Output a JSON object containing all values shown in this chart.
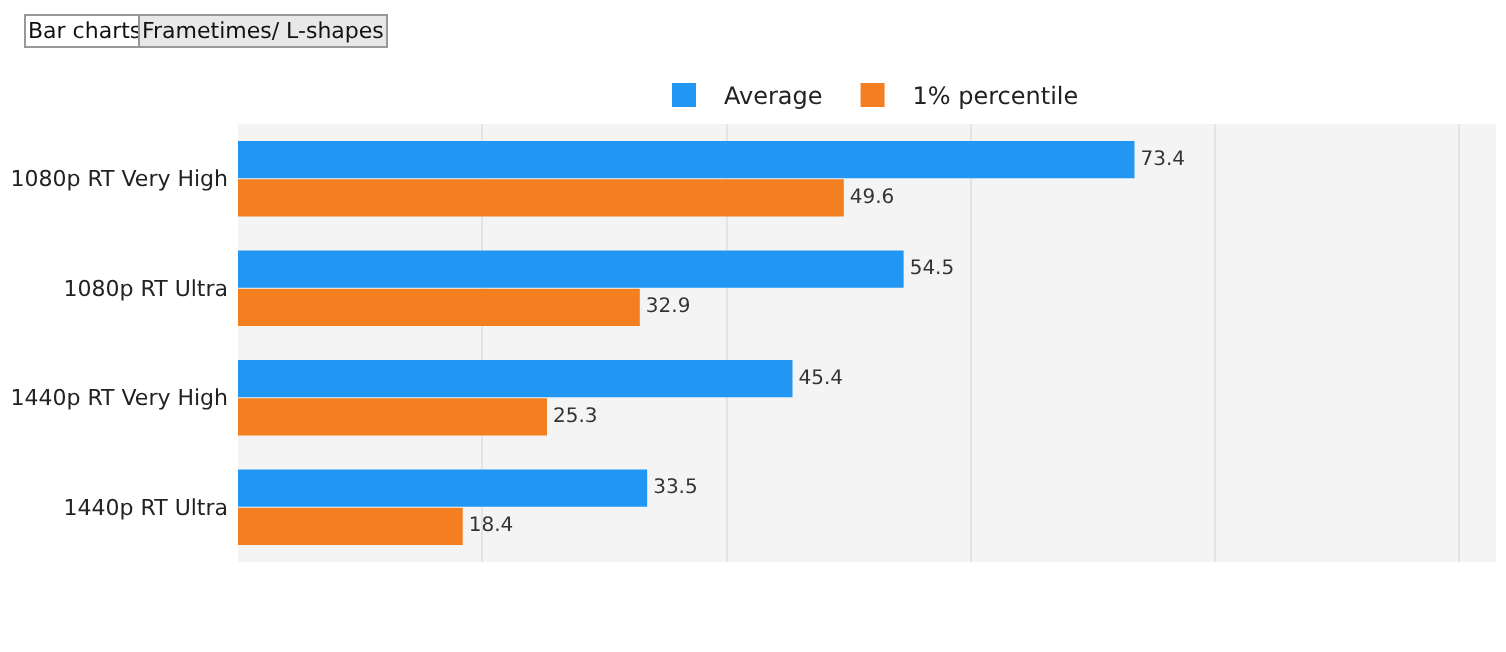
{
  "chart_data": {
    "type": "bar",
    "orientation": "horizontal",
    "categories": [
      "1080p RT Very High",
      "1080p RT Ultra",
      "1440p RT Very High",
      "1440p RT Ultra"
    ],
    "series": [
      {
        "name": "Average",
        "color": "#2196f3",
        "values": [
          73.4,
          54.5,
          45.4,
          33.5
        ]
      },
      {
        "name": "1% percentile",
        "color": "#f37f20",
        "values": [
          49.6,
          32.9,
          25.3,
          18.4
        ]
      }
    ],
    "xlim": [
      0,
      103
    ],
    "xticks": [
      {
        "value": 0,
        "label": null
      },
      {
        "value": 20,
        "label": null
      },
      {
        "value": 40,
        "label": null
      },
      {
        "value": 60,
        "label": null
      },
      {
        "value": 80,
        "label": null
      },
      {
        "value": 100,
        "label": null
      }
    ],
    "grid": "x",
    "legend": "top",
    "data_labels": true,
    "tick_labels": "y",
    "annotations": [
      "Bar charts",
      "Frametimes/ L-shapes"
    ]
  }
}
